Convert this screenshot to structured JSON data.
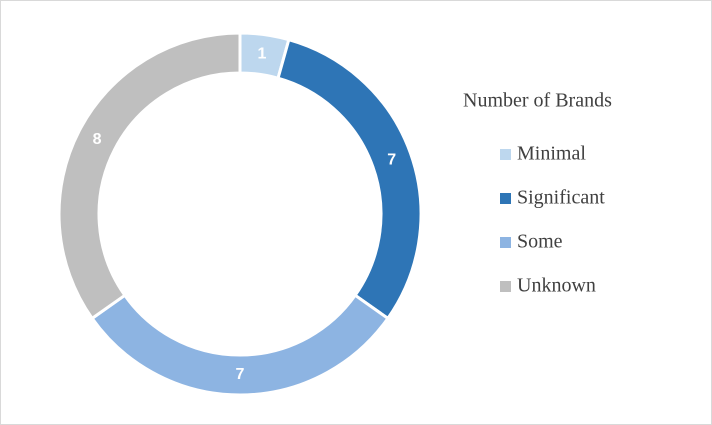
{
  "chart_data": {
    "type": "donut",
    "legend_title": "Number of Brands",
    "categories": [
      "Minimal",
      "Significant",
      "Some",
      "Unknown"
    ],
    "values": [
      1,
      7,
      7,
      8
    ],
    "colors": [
      "#bdd7ee",
      "#2e75b6",
      "#8db4e2",
      "#bfbfbf"
    ],
    "legend": "right"
  }
}
